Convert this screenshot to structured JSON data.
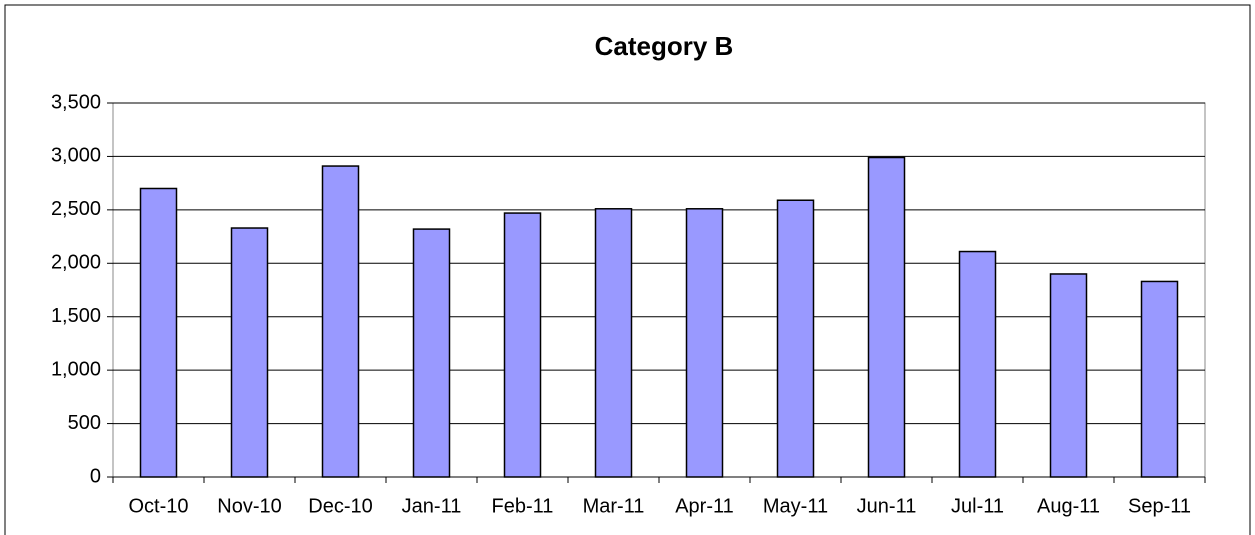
{
  "chart_data": {
    "type": "bar",
    "title": "Category B",
    "categories": [
      "Oct-10",
      "Nov-10",
      "Dec-10",
      "Jan-11",
      "Feb-11",
      "Mar-11",
      "Apr-11",
      "May-11",
      "Jun-11",
      "Jul-11",
      "Aug-11",
      "Sep-11"
    ],
    "values": [
      2700,
      2330,
      2910,
      2320,
      2470,
      2510,
      2510,
      2590,
      2990,
      2110,
      1900,
      1830
    ],
    "color": "#9999ff",
    "ylim": [
      0,
      3500
    ],
    "yticks": [
      0,
      500,
      {
        "value": 1000,
        "label": "1,000"
      },
      {
        "value": 1500,
        "label": "1,500"
      },
      {
        "value": 2000,
        "label": "2,000"
      },
      {
        "value": 2500,
        "label": "2,500"
      },
      {
        "value": 3000,
        "label": "3,000"
      },
      {
        "value": 3500,
        "label": "3,500"
      }
    ],
    "grid": true
  }
}
